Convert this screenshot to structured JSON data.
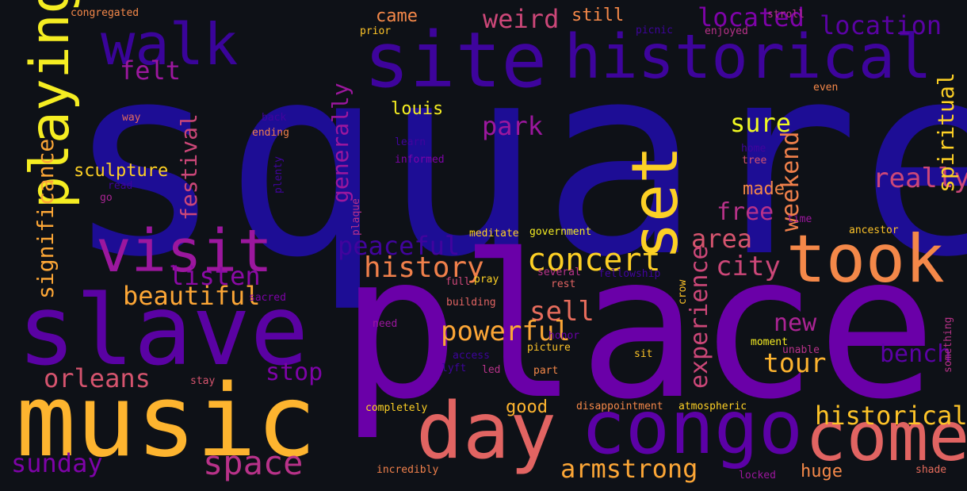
{
  "palette": {
    "background": "#0e1117",
    "style": "plasma colormap"
  },
  "words": [
    {
      "text": "square",
      "color": "#1d0d95"
    },
    {
      "text": "place",
      "color": "#6a00a8"
    },
    {
      "text": "music",
      "color": "#fdb42f"
    },
    {
      "text": "slave",
      "color": "#5a02a3"
    },
    {
      "text": "site",
      "color": "#3e049c"
    },
    {
      "text": "historical",
      "color": "#3e049c"
    },
    {
      "text": "congo",
      "color": "#5c01a6"
    },
    {
      "text": "day",
      "color": "#e16462"
    },
    {
      "text": "come",
      "color": "#e16462"
    },
    {
      "text": "took",
      "color": "#f48849"
    },
    {
      "text": "visit",
      "color": "#fdd025"
    },
    {
      "text": "walk",
      "color": "#f5ed22"
    },
    {
      "text": "space",
      "color": "#9c179e"
    },
    {
      "text": "sunday",
      "color": "#3a049a"
    },
    {
      "text": "armstrong",
      "color": "#b83289"
    },
    {
      "text": "historically",
      "color": "#7e03a8"
    },
    {
      "text": "orleans",
      "color": "#fca636"
    },
    {
      "text": "listen",
      "color": "#fdc328"
    },
    {
      "text": "beautiful",
      "color": "#d5546e"
    },
    {
      "text": "history",
      "color": "#8b0aa5"
    },
    {
      "text": "concert",
      "color": "#fca636"
    },
    {
      "text": "peaceful",
      "color": "#f0804b"
    },
    {
      "text": "sell",
      "color": "#fdd025"
    },
    {
      "text": "powerful",
      "color": "#41049d"
    },
    {
      "text": "stop",
      "color": "#e66c5c"
    },
    {
      "text": "tour",
      "color": "#fca636"
    },
    {
      "text": "new",
      "color": "#7e03a8"
    },
    {
      "text": "bench",
      "color": "#fdb42f"
    },
    {
      "text": "city",
      "color": "#ab2494"
    },
    {
      "text": "area",
      "color": "#5c01a6"
    },
    {
      "text": "free",
      "color": "#cc4778"
    },
    {
      "text": "really",
      "color": "#d5546e"
    },
    {
      "text": "sure",
      "color": "#b83289"
    },
    {
      "text": "park",
      "color": "#f0804b"
    },
    {
      "text": "felt",
      "color": "#cc4778"
    },
    {
      "text": "weird",
      "color": "#f0f921"
    },
    {
      "text": "located",
      "color": "#9c179e"
    },
    {
      "text": "location",
      "color": "#9c179e"
    },
    {
      "text": "still",
      "color": "#cc4778"
    },
    {
      "text": "came",
      "color": "#7e03a8"
    },
    {
      "text": "louis",
      "color": "#5a02a3"
    },
    {
      "text": "sculpture",
      "color": "#f48849"
    },
    {
      "text": "made",
      "color": "#f48849"
    },
    {
      "text": "good",
      "color": "#f5ed22"
    },
    {
      "text": "huge",
      "color": "#fdd025"
    },
    {
      "text": "set",
      "color": "#f48849"
    },
    {
      "text": "playing",
      "color": "#fdb42f"
    },
    {
      "text": "experience",
      "color": "#f48849"
    },
    {
      "text": "spiritual",
      "color": "#cc4778"
    },
    {
      "text": "festival",
      "color": "#fdd025"
    },
    {
      "text": "generally",
      "color": "#cc4778"
    },
    {
      "text": "significance",
      "color": "#9c179e"
    },
    {
      "text": "weekend",
      "color": "#fca636"
    },
    {
      "text": "congregated",
      "color": "#f48849"
    },
    {
      "text": "prior",
      "color": "#fdc328"
    },
    {
      "text": "stroll",
      "color": "#b83289"
    },
    {
      "text": "enjoyed",
      "color": "#b83289"
    },
    {
      "text": "picnic",
      "color": "#3e049c"
    },
    {
      "text": "even",
      "color": "#f48849"
    },
    {
      "text": "way",
      "color": "#e66c5c"
    },
    {
      "text": "back",
      "color": "#41049d"
    },
    {
      "text": "ending",
      "color": "#f0804b"
    },
    {
      "text": "learn",
      "color": "#41049d"
    },
    {
      "text": "informed",
      "color": "#7e03a8"
    },
    {
      "text": "home",
      "color": "#41049d"
    },
    {
      "text": "tree",
      "color": "#d5546e"
    },
    {
      "text": "read",
      "color": "#3e049c"
    },
    {
      "text": "go",
      "color": "#ab2494"
    },
    {
      "text": "plenty",
      "color": "#41049d"
    },
    {
      "text": "plaque",
      "color": "#b83289"
    },
    {
      "text": "meditate",
      "color": "#fdd025"
    },
    {
      "text": "government",
      "color": "#f5ed22"
    },
    {
      "text": "time",
      "color": "#9c179e"
    },
    {
      "text": "ancestor",
      "color": "#fdc328"
    },
    {
      "text": "several",
      "color": "#b83289"
    },
    {
      "text": "fellowship",
      "color": "#41049d"
    },
    {
      "text": "pray",
      "color": "#fdd025"
    },
    {
      "text": "full",
      "color": "#cc4778"
    },
    {
      "text": "rest",
      "color": "#e16462"
    },
    {
      "text": "sacred",
      "color": "#7e03a8"
    },
    {
      "text": "crow",
      "color": "#fdc328"
    },
    {
      "text": "building",
      "color": "#e16462"
    },
    {
      "text": "need",
      "color": "#9c179e"
    },
    {
      "text": "honor",
      "color": "#6a00a8"
    },
    {
      "text": "moment",
      "color": "#f5ed22"
    },
    {
      "text": "unable",
      "color": "#b83289"
    },
    {
      "text": "something",
      "color": "#b83289"
    },
    {
      "text": "access",
      "color": "#3e049c"
    },
    {
      "text": "picture",
      "color": "#fdc328"
    },
    {
      "text": "sit",
      "color": "#fdc328"
    },
    {
      "text": "lyft",
      "color": "#3e049c"
    },
    {
      "text": "led",
      "color": "#b83289"
    },
    {
      "text": "part",
      "color": "#f48849"
    },
    {
      "text": "stay",
      "color": "#d5546e"
    },
    {
      "text": "completely",
      "color": "#fdd025"
    },
    {
      "text": "disappointment",
      "color": "#f48849"
    },
    {
      "text": "atmospheric",
      "color": "#fdd025"
    },
    {
      "text": "incredibly",
      "color": "#f0804b"
    },
    {
      "text": "locked",
      "color": "#9c179e"
    },
    {
      "text": "shade",
      "color": "#e66c5c"
    }
  ]
}
